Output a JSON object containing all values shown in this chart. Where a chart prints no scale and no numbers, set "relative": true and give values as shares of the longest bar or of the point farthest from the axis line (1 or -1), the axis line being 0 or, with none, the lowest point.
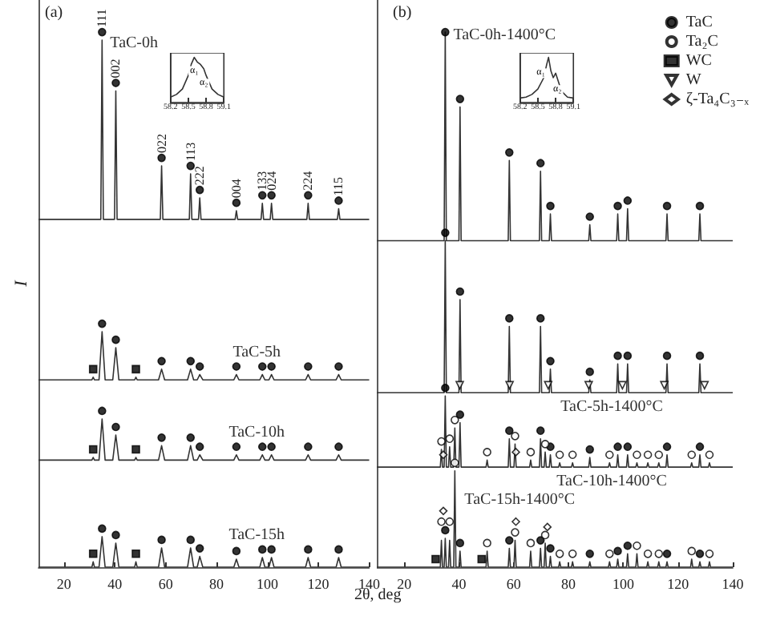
{
  "chart_data": [
    {
      "type": "line",
      "relative": true,
      "xlabel": "2θ, deg",
      "ylabel": "I",
      "xlim": [
        10,
        140
      ],
      "xticks": [
        20,
        40,
        60,
        80,
        100,
        120,
        140
      ],
      "annotations": [
        "(a)",
        {
          "text": "111",
          "x": 35,
          "y": 0.985
        },
        {
          "text": "002",
          "x": 40.4,
          "y": 0.89
        },
        {
          "text": "022",
          "x": 58.4,
          "y": 0.75
        },
        {
          "text": "113",
          "x": 69.8,
          "y": 0.735
        },
        {
          "text": "222",
          "x": 73.4,
          "y": 0.69
        },
        {
          "text": "004",
          "x": 87.8,
          "y": 0.666
        },
        {
          "text": "133",
          "x": 98,
          "y": 0.68
        },
        {
          "text": "024",
          "x": 101.6,
          "y": 0.68
        },
        {
          "text": "224",
          "x": 116,
          "y": 0.68
        },
        {
          "text": "115",
          "x": 128,
          "y": 0.67
        }
      ],
      "series": [
        {
          "name": "TaC-0h",
          "color": "#333333",
          "x": [
            10,
            34.5,
            35,
            35.5,
            39.9,
            40.4,
            40.9,
            57.9,
            58.4,
            58.9,
            69.3,
            69.8,
            70.3,
            72.9,
            73.4,
            73.9,
            87.3,
            87.8,
            88.3,
            97.5,
            98,
            98.5,
            101.1,
            101.6,
            102.1,
            115.5,
            116,
            116.5,
            127.5,
            128,
            128.5,
            140
          ],
          "values": [
            0.65,
            0.65,
            0.985,
            0.65,
            0.65,
            0.89,
            0.65,
            0.65,
            0.75,
            0.65,
            0.65,
            0.735,
            0.65,
            0.65,
            0.69,
            0.65,
            0.65,
            0.666,
            0.65,
            0.65,
            0.68,
            0.65,
            0.65,
            0.68,
            0.65,
            0.65,
            0.68,
            0.65,
            0.65,
            0.67,
            0.65,
            0.65
          ]
        },
        {
          "name": "TaC-5h",
          "color": "#333333",
          "x": [
            10,
            31,
            31.5,
            32,
            33.8,
            35,
            36.2,
            39.2,
            40.4,
            41.6,
            47.8,
            48.3,
            48.8,
            57.2,
            58.4,
            59.6,
            68.6,
            69.8,
            71,
            72.4,
            73.4,
            74.6,
            86.8,
            87.8,
            88.8,
            97,
            98,
            99,
            100.6,
            101.6,
            102.6,
            115,
            116,
            117,
            127,
            128,
            129,
            140
          ],
          "values": [
            0.35,
            0.35,
            0.355,
            0.35,
            0.35,
            0.44,
            0.35,
            0.35,
            0.41,
            0.35,
            0.35,
            0.355,
            0.35,
            0.35,
            0.37,
            0.35,
            0.35,
            0.37,
            0.35,
            0.35,
            0.36,
            0.35,
            0.35,
            0.36,
            0.35,
            0.35,
            0.36,
            0.35,
            0.35,
            0.36,
            0.35,
            0.35,
            0.36,
            0.35,
            0.35,
            0.36,
            0.35,
            0.35
          ]
        },
        {
          "name": "TaC-10h",
          "color": "#333333",
          "x": [
            10,
            31,
            31.5,
            32,
            33.8,
            35,
            36.2,
            39.2,
            40.4,
            41.6,
            47.8,
            48.3,
            48.8,
            57.2,
            58.4,
            59.6,
            68.6,
            69.8,
            71,
            72.4,
            73.4,
            74.6,
            86.8,
            87.8,
            88.8,
            97,
            98,
            99,
            100.6,
            101.6,
            102.6,
            115,
            116,
            117,
            127,
            128,
            129,
            140
          ],
          "values": [
            0.2,
            0.2,
            0.205,
            0.2,
            0.2,
            0.277,
            0.2,
            0.2,
            0.247,
            0.2,
            0.2,
            0.205,
            0.2,
            0.2,
            0.227,
            0.2,
            0.2,
            0.227,
            0.2,
            0.2,
            0.21,
            0.2,
            0.2,
            0.21,
            0.2,
            0.2,
            0.21,
            0.2,
            0.2,
            0.21,
            0.2,
            0.2,
            0.21,
            0.2,
            0.2,
            0.21,
            0.2,
            0.2
          ]
        },
        {
          "name": "TaC-15h",
          "color": "#333333",
          "x": [
            10,
            31,
            31.5,
            32,
            33.8,
            35,
            36.2,
            39.2,
            40.4,
            41.6,
            47.8,
            48.3,
            48.8,
            57.2,
            58.4,
            59.6,
            68.6,
            69.8,
            71,
            72.4,
            73.4,
            74.6,
            86.8,
            87.8,
            88.8,
            97,
            98,
            99,
            100.6,
            101.6,
            102.6,
            115,
            116,
            117,
            127,
            128,
            129,
            140
          ],
          "values": [
            0,
            0,
            0.01,
            0,
            0,
            0.057,
            0,
            0,
            0.045,
            0,
            0,
            0.01,
            0,
            0,
            0.036,
            0,
            0,
            0.036,
            0,
            0,
            0.02,
            0,
            0,
            0.015,
            0,
            0,
            0.018,
            0,
            0,
            0.018,
            0,
            0,
            0.018,
            0,
            0,
            0.018,
            0,
            0
          ]
        },
        {
          "type": "scatter",
          "marker": "circle",
          "color": "#000000",
          "x": [
            35,
            40.4,
            58.4,
            69.8,
            73.4,
            87.8,
            98,
            101.6,
            116,
            128,
            35,
            40.4,
            58.4,
            69.8,
            73.4,
            87.8,
            98,
            101.6,
            116,
            128,
            35,
            40.4,
            58.4,
            69.8,
            73.4,
            87.8,
            98,
            101.6,
            116,
            128,
            35,
            40.4,
            58.4,
            69.8,
            73.4,
            87.8,
            98,
            101.6,
            116,
            128
          ],
          "values": [
            1,
            0.905,
            0.765,
            0.75,
            0.705,
            0.681,
            0.695,
            0.695,
            0.695,
            0.685,
            0.455,
            0.425,
            0.385,
            0.385,
            0.375,
            0.375,
            0.375,
            0.375,
            0.375,
            0.375,
            0.292,
            0.262,
            0.242,
            0.242,
            0.225,
            0.225,
            0.225,
            0.225,
            0.225,
            0.225,
            0.072,
            0.06,
            0.051,
            0.051,
            0.035,
            0.03,
            0.033,
            0.033,
            0.033,
            0.033
          ]
        },
        {
          "type": "scatter",
          "marker": "square",
          "color": "#000000",
          "x": [
            31.5,
            48.3,
            31.5,
            48.3,
            31.5,
            48.3
          ],
          "values": [
            0.37,
            0.37,
            0.22,
            0.22,
            0.025,
            0.025
          ]
        }
      ]
    },
    {
      "type": "line",
      "relative": true,
      "xlim": [
        58.2,
        59.1
      ],
      "xticks": [
        58.2,
        58.5,
        58.8,
        59.1
      ],
      "annotations": [
        {
          "text": "α₁",
          "x": 58.6,
          "y": 0.7
        },
        {
          "text": "α₂",
          "x": 58.76,
          "y": 0.42
        }
      ],
      "series": [
        {
          "color": "#333333",
          "x": [
            58.2,
            58.3,
            58.4,
            58.5,
            58.55,
            58.6,
            58.65,
            58.7,
            58.76,
            58.8,
            58.9,
            59,
            59.1
          ],
          "values": [
            0.12,
            0.18,
            0.3,
            0.6,
            0.85,
            1,
            0.9,
            0.85,
            0.75,
            0.6,
            0.3,
            0.18,
            0.12
          ]
        }
      ]
    },
    {
      "type": "line",
      "relative": true,
      "xlim": [
        10,
        140
      ],
      "xticks": [
        20,
        40,
        60,
        80,
        100,
        120,
        140
      ],
      "legend": "top right",
      "annotations": [
        "(b)"
      ],
      "series": [
        {
          "name": "TaC-0h-1400°C",
          "color": "#333333",
          "x": [
            10,
            34.6,
            35,
            35.4,
            40,
            40.4,
            40.8,
            58,
            58.4,
            58.8,
            69.4,
            69.8,
            70.2,
            73,
            73.4,
            73.8,
            87.4,
            87.8,
            88.2,
            97.6,
            98,
            98.4,
            101.2,
            101.6,
            102,
            115.6,
            116,
            116.4,
            127.6,
            128,
            128.4,
            140
          ],
          "values": [
            0.61,
            0.61,
            1,
            0.61,
            0.61,
            0.86,
            0.61,
            0.61,
            0.76,
            0.61,
            0.61,
            0.74,
            0.61,
            0.61,
            0.66,
            0.61,
            0.61,
            0.64,
            0.61,
            0.61,
            0.66,
            0.61,
            0.61,
            0.67,
            0.61,
            0.61,
            0.66,
            0.61,
            0.61,
            0.66,
            0.61,
            0.61
          ]
        },
        {
          "name": "TaC-5h-1400°C",
          "color": "#333333",
          "x": [
            10,
            34.6,
            35,
            35.4,
            40,
            40.4,
            40.8,
            58,
            58.4,
            58.8,
            69.4,
            69.8,
            70.2,
            73,
            73.4,
            73.8,
            87.4,
            87.8,
            88.2,
            97.6,
            98,
            98.4,
            101.2,
            101.6,
            102,
            115.6,
            116,
            116.4,
            127.6,
            128,
            128.4,
            140
          ],
          "values": [
            0.326,
            0.326,
            0.61,
            0.326,
            0.326,
            0.5,
            0.326,
            0.326,
            0.45,
            0.326,
            0.326,
            0.45,
            0.326,
            0.326,
            0.37,
            0.326,
            0.326,
            0.35,
            0.326,
            0.326,
            0.38,
            0.326,
            0.326,
            0.38,
            0.326,
            0.326,
            0.38,
            0.326,
            0.326,
            0.38,
            0.326,
            0.326
          ]
        },
        {
          "name": "TaC-10h-1400°C",
          "color": "#333333",
          "x": [
            10,
            33.2,
            33.6,
            34,
            34.6,
            35,
            35.4,
            36.2,
            36.6,
            37,
            38.1,
            38.5,
            38.9,
            40,
            40.4,
            40.8,
            49.9,
            50.3,
            50.7,
            58,
            58.4,
            58.8,
            60.1,
            60.5,
            60.9,
            65.8,
            66.2,
            66.6,
            69.4,
            69.8,
            70.2,
            71.1,
            71.5,
            71.9,
            73,
            73.4,
            73.8,
            76.4,
            76.8,
            77.2,
            81.1,
            81.5,
            81.9,
            87.4,
            87.8,
            88.2,
            94.6,
            95,
            95.4,
            97.6,
            98,
            98.4,
            101.2,
            101.6,
            102,
            104.6,
            105,
            105.4,
            108.6,
            109,
            109.4,
            112.6,
            113,
            113.4,
            115.6,
            116,
            116.4,
            124.6,
            125,
            125.4,
            127.6,
            128,
            128.4,
            131.1,
            131.5,
            131.9,
            140
          ],
          "values": [
            0.187,
            0.187,
            0.22,
            0.187,
            0.187,
            0.32,
            0.187,
            0.187,
            0.225,
            0.187,
            0.187,
            0.26,
            0.187,
            0.187,
            0.27,
            0.187,
            0.187,
            0.2,
            0.187,
            0.187,
            0.24,
            0.187,
            0.187,
            0.23,
            0.187,
            0.187,
            0.2,
            0.187,
            0.187,
            0.24,
            0.187,
            0.187,
            0.215,
            0.187,
            0.187,
            0.21,
            0.187,
            0.187,
            0.195,
            0.187,
            0.187,
            0.195,
            0.187,
            0.187,
            0.205,
            0.187,
            0.187,
            0.195,
            0.187,
            0.187,
            0.21,
            0.187,
            0.187,
            0.21,
            0.187,
            0.187,
            0.195,
            0.187,
            0.187,
            0.195,
            0.187,
            0.187,
            0.195,
            0.187,
            0.187,
            0.21,
            0.187,
            0.187,
            0.195,
            0.187,
            0.187,
            0.21,
            0.187,
            0.187,
            0.195,
            0.187,
            0.187
          ]
        },
        {
          "name": "TaC-15h-1400°C",
          "color": "#333333",
          "x": [
            10,
            33.2,
            33.6,
            34,
            34.6,
            35,
            35.4,
            36.2,
            36.6,
            37,
            38.1,
            38.5,
            38.9,
            40,
            40.4,
            40.8,
            49.9,
            50.3,
            50.7,
            58,
            58.4,
            58.8,
            60.1,
            60.5,
            60.9,
            65.8,
            66.2,
            66.6,
            69.4,
            69.8,
            70.2,
            71.1,
            71.5,
            71.9,
            73,
            73.4,
            73.8,
            76.4,
            76.8,
            77.2,
            81.1,
            81.5,
            81.9,
            87.4,
            87.8,
            88.2,
            94.6,
            95,
            95.4,
            97.6,
            98,
            98.4,
            101.2,
            101.6,
            102,
            104.6,
            105,
            105.4,
            108.6,
            109,
            109.4,
            112.6,
            113,
            113.4,
            115.6,
            116,
            116.4,
            124.6,
            125,
            125.4,
            127.6,
            128,
            128.4,
            131.1,
            131.5,
            131.9,
            140
          ],
          "values": [
            0,
            0,
            0.05,
            0,
            0,
            0.054,
            0,
            0,
            0.05,
            0,
            0,
            0.18,
            0,
            0,
            0.03,
            0,
            0,
            0.03,
            0,
            0,
            0.035,
            0,
            0,
            0.05,
            0,
            0,
            0.03,
            0,
            0,
            0.035,
            0,
            0,
            0.045,
            0,
            0,
            0.02,
            0,
            0,
            0.01,
            0,
            0,
            0.01,
            0,
            0,
            0.01,
            0,
            0,
            0.01,
            0,
            0,
            0.015,
            0,
            0,
            0.025,
            0,
            0,
            0.025,
            0,
            0,
            0.01,
            0,
            0,
            0.01,
            0,
            0,
            0.01,
            0,
            0,
            0.015,
            0,
            0,
            0.01,
            0,
            0,
            0.01,
            0,
            0
          ]
        },
        {
          "name": "TaC",
          "type": "scatter",
          "marker": "circle",
          "color": "#000000",
          "x": [
            35,
            40.4,
            58.4,
            69.8,
            73.4,
            87.8,
            98,
            101.6,
            116,
            128,
            35,
            40.4,
            58.4,
            69.8,
            73.4,
            87.8,
            98,
            101.6,
            116,
            128,
            35,
            40.4,
            58.4,
            69.8,
            73.4,
            87.8,
            98,
            101.6,
            116,
            128,
            35,
            40.4,
            58.4,
            69.8,
            73.4,
            87.8,
            98,
            101.6,
            116,
            128
          ],
          "values": [
            1,
            0.875,
            0.775,
            0.755,
            0.675,
            0.655,
            0.675,
            0.685,
            0.675,
            0.675,
            0.625,
            0.515,
            0.465,
            0.465,
            0.385,
            0.365,
            0.395,
            0.395,
            0.395,
            0.395,
            0.335,
            0.285,
            0.255,
            0.255,
            0.225,
            0.22,
            0.225,
            0.225,
            0.225,
            0.225,
            0.069,
            0.045,
            0.05,
            0.05,
            0.035,
            0.025,
            0.03,
            0.04,
            0.025,
            0.025
          ]
        },
        {
          "name": "Ta₂C",
          "type": "scatter",
          "marker": "circle",
          "color": "#ffffff",
          "x": [
            33.6,
            36.6,
            38.5,
            50.3,
            60.5,
            66.2,
            71.5,
            76.8,
            81.5,
            95,
            105,
            109,
            113,
            125,
            131.5,
            33.6,
            36.6,
            38.5,
            50.3,
            60.5,
            66.2,
            71.5,
            76.8,
            81.5,
            95,
            105,
            109,
            113,
            125,
            131.5
          ],
          "values": [
            0.235,
            0.24,
            0.275,
            0.215,
            0.245,
            0.215,
            0.23,
            0.21,
            0.21,
            0.21,
            0.21,
            0.21,
            0.21,
            0.21,
            0.21,
            0.085,
            0.085,
            0.195,
            0.045,
            0.065,
            0.045,
            0.06,
            0.025,
            0.025,
            0.025,
            0.04,
            0.025,
            0.025,
            0.03,
            0.025
          ]
        },
        {
          "name": "WC",
          "type": "scatter",
          "marker": "square",
          "color": "#000000",
          "x": [
            31.5,
            48.3
          ],
          "values": [
            0.015,
            0.015
          ]
        },
        {
          "name": "W",
          "type": "scatter",
          "marker": "triangle",
          "color": "#ffffff",
          "x": [
            40.3,
            58.5,
            72.6,
            87.4,
            99.7,
            115,
            129.7
          ],
          "values": [
            0.34,
            0.34,
            0.34,
            0.34,
            0.34,
            0.34,
            0.34
          ]
        },
        {
          "name": "ζ-Ta₄C₃₋ₓ",
          "type": "scatter",
          "marker": "diamond",
          "color": "#ffffff",
          "x": [
            34.3,
            60.8,
            34.3,
            60.8,
            72.3
          ],
          "values": [
            0.21,
            0.215,
            0.105,
            0.085,
            0.075
          ]
        }
      ]
    },
    {
      "type": "line",
      "relative": true,
      "xlim": [
        58.2,
        59.1
      ],
      "xticks": [
        58.2,
        58.5,
        58.8,
        59.1
      ],
      "annotations": [
        {
          "text": "α₁",
          "x": 58.55,
          "y": 0.65
        },
        {
          "text": "α₂",
          "x": 58.83,
          "y": 0.28
        }
      ],
      "series": [
        {
          "color": "#333333",
          "x": [
            58.2,
            58.3,
            58.4,
            58.5,
            58.6,
            58.65,
            58.68,
            58.72,
            58.76,
            58.8,
            58.85,
            58.9,
            59,
            59.1
          ],
          "values": [
            0.1,
            0.12,
            0.18,
            0.3,
            0.55,
            0.85,
            1,
            0.7,
            0.55,
            0.65,
            0.45,
            0.25,
            0.12,
            0.1
          ]
        }
      ]
    }
  ]
}
